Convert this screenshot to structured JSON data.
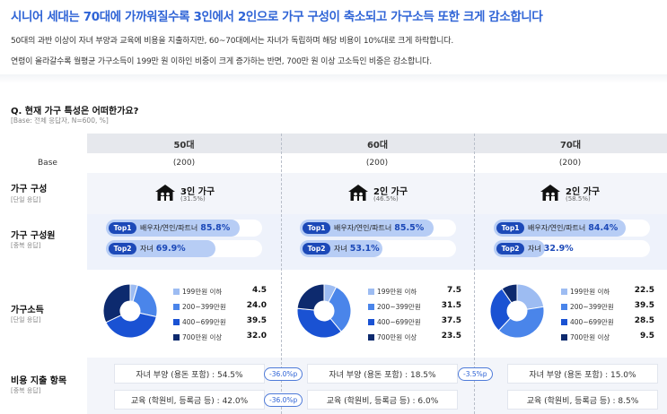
{
  "headline": "시니어 세대는 70대에 가까워질수록 3인에서 2인으로 가구 구성이 축소되고 가구소득 또한 크게 감소합니다",
  "descriptions": [
    "50대의 과반 이상이 자녀 부양과 교육에 비용을 지출하지만, 60~70대에서는 자녀가 독립하며 해당 비용이 10%대로 크게 하락합니다.",
    "연령이 올라갈수록 월평균 가구소득이 199만 원 이하인 비중이 크게 증가하는 반면, 700만 원 이상 고소득인 비중은 감소합니다."
  ],
  "question": "Q. 현재 가구 특성은 어떠한가요?",
  "base_note": "[Base: 전체 응답자, N=600, %]",
  "columns": [
    "50대",
    "60대",
    "70대"
  ],
  "base": {
    "label": "Base",
    "values": [
      "(200)",
      "(200)",
      "(200)"
    ]
  },
  "rows": {
    "household": {
      "label": "가구 구성",
      "sub": "[단일 응답]"
    },
    "members": {
      "label": "가구 구성원",
      "sub": "[중복 응답]"
    },
    "income": {
      "label": "가구소득",
      "sub": "[단일 응답]"
    },
    "expense": {
      "label": "비용 지출 항목",
      "sub": "[중복 응답]"
    }
  },
  "household": [
    {
      "title": "3인 가구",
      "pct": "(31.5%)",
      "icon": "house-icon"
    },
    {
      "title": "2인 가구",
      "pct": "(46.5%)",
      "icon": "house-icon"
    },
    {
      "title": "2인 가구",
      "pct": "(58.5%)",
      "icon": "house-icon"
    }
  ],
  "members": [
    [
      {
        "tag": "Top1",
        "label": "배우자/연인/파트너",
        "value": "85.8%",
        "v": 85.8
      },
      {
        "tag": "Top2",
        "label": "자녀",
        "value": "69.9%",
        "v": 69.9
      }
    ],
    [
      {
        "tag": "Top1",
        "label": "배우자/연인/파트너",
        "value": "85.5%",
        "v": 85.5
      },
      {
        "tag": "Top2",
        "label": "자녀",
        "value": "53.1%",
        "v": 53.1
      }
    ],
    [
      {
        "tag": "Top1",
        "label": "배우자/연인/파트너",
        "value": "84.4%",
        "v": 84.4
      },
      {
        "tag": "Top2",
        "label": "자녀",
        "value": "32.9%",
        "v": 32.9
      }
    ]
  ],
  "income_labels": [
    "199만원 이하",
    "200~399만원",
    "400~699만원",
    "700만원 이상"
  ],
  "income_colors": [
    "#9dbcf2",
    "#4a85ea",
    "#1a52d3",
    "#0d2a6e"
  ],
  "income": [
    {
      "values": [
        4.5,
        24.0,
        39.5,
        32.0
      ],
      "display": [
        "4.5",
        "24.0",
        "39.5",
        "32.0"
      ]
    },
    {
      "values": [
        7.5,
        31.5,
        37.5,
        23.5
      ],
      "display": [
        "7.5",
        "31.5",
        "37.5",
        "23.5"
      ]
    },
    {
      "values": [
        22.5,
        39.5,
        28.5,
        9.5
      ],
      "display": [
        "22.5",
        "39.5",
        "28.5",
        "9.5"
      ]
    }
  ],
  "expense": [
    [
      "자녀 부양 (용돈 포함) : 54.5%",
      "교육 (학원비, 등록금 등) : 42.0%"
    ],
    [
      "자녀 부양 (용돈 포함) : 18.5%",
      "교육 (학원비, 등록금 등) : 6.0%"
    ],
    [
      "자녀 부양 (용돈 포함) : 15.0%",
      "교육 (학원비, 등록금 등) : 8.5%"
    ]
  ],
  "diffs": [
    "-36.0%p",
    "-3.5%p",
    "-36.0%p"
  ]
}
